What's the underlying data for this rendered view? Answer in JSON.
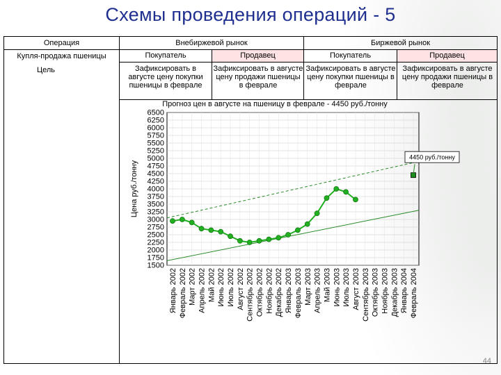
{
  "title": "Схемы проведения операций - 5",
  "table": {
    "col_operation": "Операция",
    "col_otc": "Внебиржевой рынок",
    "col_exchange": "Биржевой рынок",
    "row1_label": "Купля-продажа пшеницы",
    "row2_label": "Цель",
    "buyer": "Покупатель",
    "seller": "Продавец",
    "buyer_goal": "Зафиксировать в августе цену покупки пшеницы в феврале",
    "seller_goal": "Зафиксировать в августе цену продажи пшеницы в феврале"
  },
  "page_number": "44",
  "colors": {
    "title": "#1f2f8f",
    "series": "#22b022",
    "trend": "#2a8a2a",
    "pink": "#fde3e3"
  },
  "chart_data": {
    "type": "line",
    "title": "Прогноз цен в августе на пшеницу в феврале - 4450 руб./тонну",
    "ylabel": "Цена руб./тонну",
    "xlabel": "",
    "ylim": [
      1500,
      6500
    ],
    "yticks": [
      1500,
      1750,
      2000,
      2250,
      2500,
      2750,
      3000,
      3250,
      3500,
      3750,
      4000,
      4250,
      4500,
      4750,
      5000,
      5250,
      5500,
      5750,
      6000,
      6250,
      6500
    ],
    "categories": [
      "Январь 2002",
      "Февраль 2002",
      "Март 2002",
      "Апрель 2002",
      "Май 2002",
      "Июнь 2002",
      "Июль 2002",
      "Август 2002",
      "Сентябрь 2002",
      "Октябрь 2002",
      "Ноябрь 2002",
      "Декабрь 2002",
      "Январь 2003",
      "Февраль 2003",
      "Март 2003",
      "Апрель 2003",
      "Май 2003",
      "Июнь 2003",
      "Июль 2003",
      "Август 2003",
      "Сентябрь 2003",
      "Октябрь 2003",
      "Ноябрь 2003",
      "Декабрь 2003",
      "Январь 2004",
      "Февраль 2004"
    ],
    "series": [
      {
        "values": [
          2950,
          3000,
          2900,
          2700,
          2650,
          2600,
          2450,
          2300,
          2250,
          2300,
          2350,
          2400,
          2500,
          2650,
          2850,
          3200,
          3700,
          4000,
          3900,
          3650,
          null,
          null,
          null,
          null,
          null,
          null
        ]
      }
    ],
    "forecast": {
      "category": "Февраль 2004",
      "value": 4450,
      "label": "4450 руб./тонну"
    },
    "channel": {
      "upper": {
        "start": 3050,
        "end": 4900
      },
      "lower": {
        "start": 1650,
        "end": 3300
      }
    },
    "grid": true
  }
}
